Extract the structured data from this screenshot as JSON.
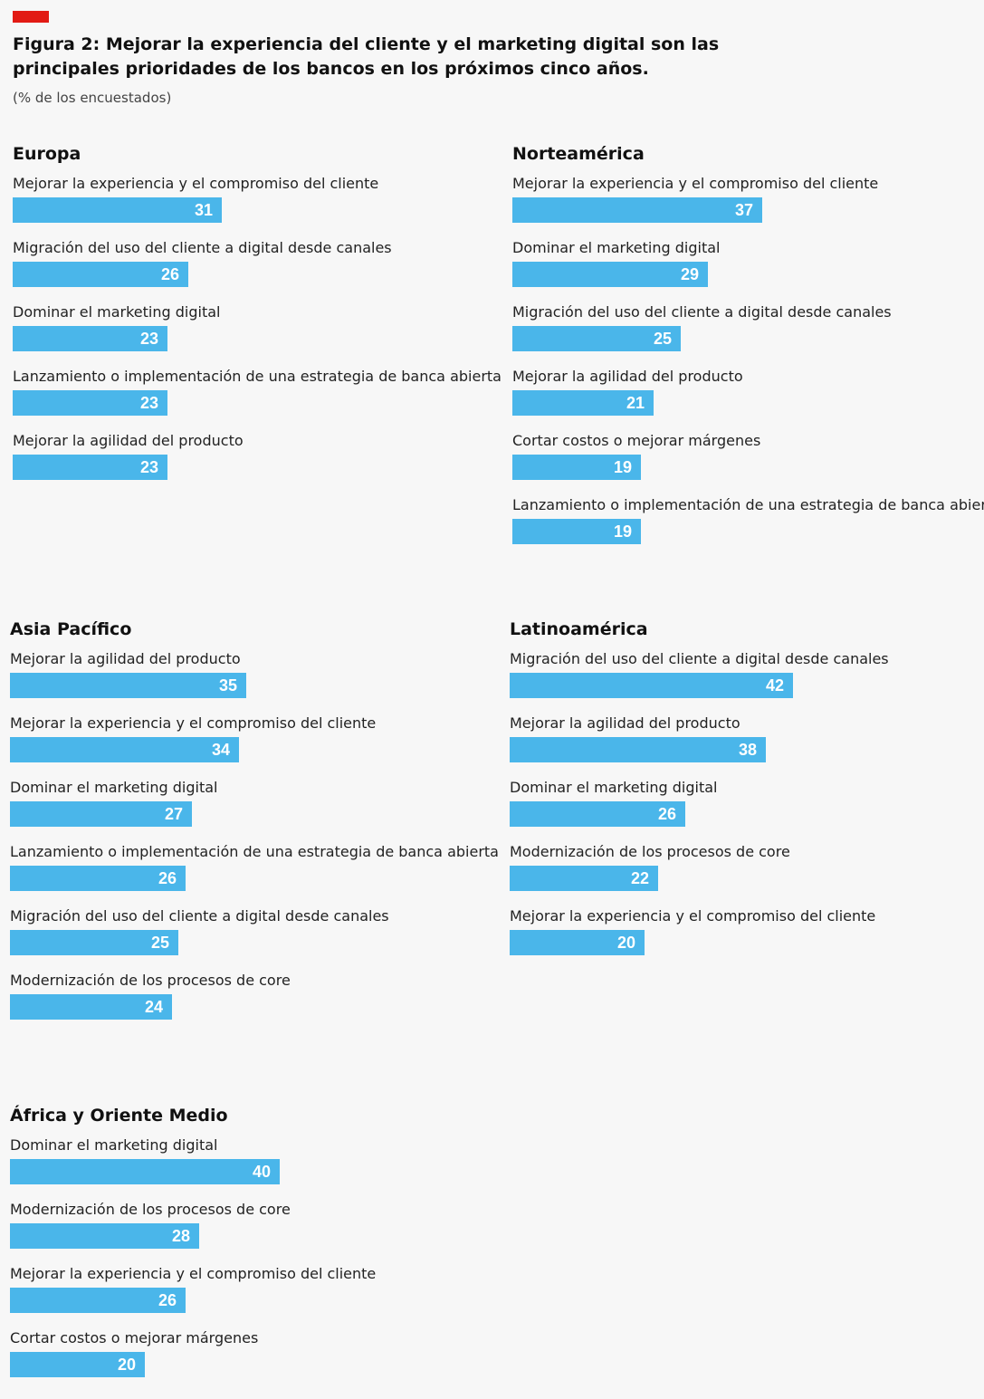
{
  "header": {
    "title": "Figura 2: Mejorar la experiencia del cliente y el marketing digital son las principales prioridades de los bancos en los próximos cinco años.",
    "subtitle": "(% de los encuestados)",
    "accent_color": "#e21b14"
  },
  "colors": {
    "bar": "#4ab6ea",
    "bar_text": "#ffffff"
  },
  "chart_data": [
    {
      "type": "bar",
      "title": "Europa",
      "categories": [
        "Mejorar la experiencia y el compromiso del cliente",
        "Migración del uso del cliente a digital desde canales",
        "Dominar el marketing digital",
        "Lanzamiento o implementación de una estrategia de banca abierta",
        "Mejorar la agilidad del producto"
      ],
      "values": [
        31,
        26,
        23,
        23,
        23
      ]
    },
    {
      "type": "bar",
      "title": "Norteamérica",
      "categories": [
        "Mejorar la experiencia y el compromiso del cliente",
        "Dominar el marketing digital",
        "Migración del uso del cliente a digital desde canales",
        "Mejorar la agilidad del producto",
        "Cortar costos o mejorar márgenes",
        "Lanzamiento o implementación de una estrategia de banca abierta"
      ],
      "values": [
        37,
        29,
        25,
        21,
        19,
        19
      ]
    },
    {
      "type": "bar",
      "title": "Asia Pacífico",
      "categories": [
        "Mejorar la agilidad del producto",
        "Mejorar la experiencia y el compromiso del cliente",
        "Dominar el marketing digital",
        "Lanzamiento o implementación de una estrategia de banca abierta",
        "Migración del uso del cliente a digital desde canales",
        "Modernización de los procesos de core"
      ],
      "values": [
        35,
        34,
        27,
        26,
        25,
        24
      ]
    },
    {
      "type": "bar",
      "title": "Latinoamérica",
      "categories": [
        "Migración del uso del cliente a digital desde canales",
        "Mejorar la agilidad del producto",
        "Dominar el marketing digital",
        "Modernización de los procesos de core",
        "Mejorar la experiencia y el compromiso del cliente"
      ],
      "values": [
        42,
        38,
        26,
        22,
        20
      ]
    },
    {
      "type": "bar",
      "title": "África y Oriente Medio",
      "categories": [
        "Dominar el marketing digital",
        "Modernización de los procesos de core",
        "Mejorar la experiencia y el compromiso del cliente",
        "Cortar costos o mejorar márgenes"
      ],
      "values": [
        40,
        28,
        26,
        20
      ]
    }
  ]
}
